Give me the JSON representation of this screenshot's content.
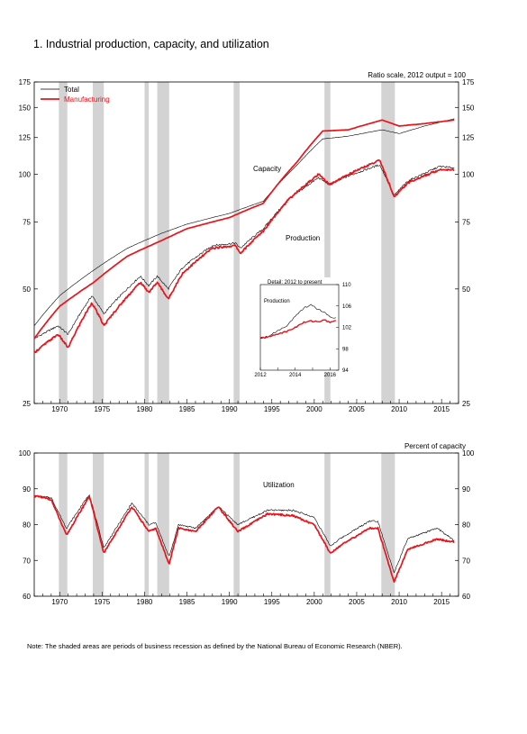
{
  "title": "1.  Industrial production, capacity, and utilization",
  "note": "Note: The shaded areas are periods of business recession as defined by the National Bureau of Economic Research (NBER).",
  "colors": {
    "total": "#000000",
    "manufacturing": "#e8141b",
    "recession": "#d3d3d3"
  },
  "chart_data": [
    {
      "type": "line",
      "scale": "log",
      "subtitle": "Ratio scale, 2012 output = 100",
      "x_range": [
        1967,
        2017
      ],
      "x_ticks": [
        "1970",
        "1975",
        "1980",
        "1985",
        "1990",
        "1995",
        "2000",
        "2005",
        "2010",
        "2015"
      ],
      "ylim": [
        25,
        175
      ],
      "y_ticks": [
        25,
        50,
        75,
        100,
        125,
        150,
        175
      ],
      "legend": {
        "placement": "top-left",
        "entries": [
          "Total",
          "Manufacturing"
        ]
      },
      "annotations": {
        "capacity": "Capacity",
        "production": "Production"
      },
      "recessions": [
        [
          1969.9,
          1970.9
        ],
        [
          1973.9,
          1975.2
        ],
        [
          1980.0,
          1980.5
        ],
        [
          1981.5,
          1982.9
        ],
        [
          1990.5,
          1991.2
        ],
        [
          2001.2,
          2001.9
        ],
        [
          2007.9,
          2009.5
        ]
      ],
      "series": [
        {
          "name": "Total",
          "group": "capacity",
          "x": [
            1967,
            1970,
            1974,
            1978,
            1982,
            1985,
            1990,
            1994,
            1998,
            2001,
            2004,
            2008,
            2010,
            2013,
            2016.5
          ],
          "values": [
            40,
            48,
            56,
            64,
            70,
            74,
            79,
            85,
            106,
            124,
            126,
            131,
            128,
            134,
            140
          ]
        },
        {
          "name": "Manufacturing",
          "group": "capacity",
          "x": [
            1967,
            1970,
            1974,
            1978,
            1982,
            1985,
            1990,
            1994,
            1998,
            2001,
            2004,
            2008,
            2010,
            2013,
            2016.5
          ],
          "values": [
            37,
            45,
            52,
            61,
            67,
            72,
            77,
            84,
            108,
            130,
            131,
            139,
            134,
            136,
            139
          ]
        },
        {
          "name": "Total",
          "group": "production",
          "x": [
            1967,
            1969.8,
            1971,
            1973.8,
            1975.2,
            1979.5,
            1980.5,
            1981.5,
            1982.8,
            1984.5,
            1988,
            1990.7,
            1991.3,
            1994,
            1997,
            2000.5,
            2001.8,
            2004,
            2007.7,
            2009.4,
            2011,
            2014.8,
            2016.5
          ],
          "values": [
            37,
            40,
            38,
            48,
            43,
            54,
            51,
            54,
            50,
            57,
            65,
            66,
            64,
            72,
            86,
            98,
            94,
            99,
            106,
            88,
            96,
            105,
            104
          ]
        },
        {
          "name": "Manufacturing",
          "group": "production",
          "x": [
            1967,
            1969.8,
            1971,
            1973.8,
            1975.2,
            1979.5,
            1980.5,
            1981.5,
            1982.8,
            1984.5,
            1988,
            1990.7,
            1991.3,
            1994,
            1997,
            2000.5,
            2001.8,
            2004,
            2007.7,
            2009.4,
            2011,
            2014.8,
            2016.5
          ],
          "values": [
            34,
            38,
            35,
            46,
            40,
            52,
            49,
            52,
            47,
            55,
            64,
            65,
            62,
            71,
            86,
            100,
            94,
            100,
            109,
            87,
            95,
            103,
            103
          ]
        }
      ],
      "inset": {
        "title": "Detail: 2012 to present",
        "label": "Production",
        "x_ticks": [
          "2012",
          "2014",
          "2016"
        ],
        "x_range": [
          2012,
          2016.5
        ],
        "ylim": [
          94,
          110
        ],
        "y_ticks": [
          94,
          98,
          102,
          106,
          110
        ],
        "series": [
          {
            "name": "Total",
            "x": [
              2012,
              2012.5,
              2013,
              2013.5,
              2014,
              2014.5,
              2014.9,
              2015.3,
              2015.7,
              2016,
              2016.4
            ],
            "values": [
              100,
              100.4,
              101.4,
              102.3,
              104,
              105.6,
              106.3,
              105.4,
              104.8,
              104,
              103.7
            ]
          },
          {
            "name": "Manufacturing",
            "x": [
              2012,
              2012.5,
              2013,
              2013.5,
              2014,
              2014.5,
              2014.9,
              2015.3,
              2015.7,
              2016,
              2016.4
            ],
            "values": [
              100,
              100.2,
              100.8,
              101.2,
              102,
              102.9,
              103.2,
              103.1,
              103.3,
              103,
              103.2
            ]
          }
        ]
      }
    },
    {
      "type": "line",
      "subtitle": "Percent of capacity",
      "x_range": [
        1967,
        2017
      ],
      "x_ticks": [
        "1970",
        "1975",
        "1980",
        "1985",
        "1990",
        "1995",
        "2000",
        "2005",
        "2010",
        "2015"
      ],
      "ylim": [
        60,
        100
      ],
      "y_ticks": [
        60,
        70,
        80,
        90,
        100
      ],
      "annotations": {
        "utilization": "Utilization"
      },
      "recessions": [
        [
          1969.9,
          1970.9
        ],
        [
          1973.9,
          1975.2
        ],
        [
          1980.0,
          1980.5
        ],
        [
          1981.5,
          1982.9
        ],
        [
          1990.5,
          1991.2
        ],
        [
          2001.2,
          2001.9
        ],
        [
          2007.9,
          2009.5
        ]
      ],
      "series": [
        {
          "name": "Total",
          "x": [
            1967,
            1969,
            1970.8,
            1973.5,
            1975.2,
            1978.5,
            1980.5,
            1981.3,
            1982.9,
            1984,
            1986,
            1988.7,
            1991,
            1994.5,
            1997.5,
            2000,
            2001.9,
            2003,
            2006.5,
            2007.5,
            2009.4,
            2011,
            2014.5,
            2016.5
          ],
          "values": [
            88,
            87.5,
            79,
            88.5,
            73.5,
            86,
            80,
            80.5,
            71,
            80,
            79,
            85,
            80,
            84,
            84,
            82,
            74,
            76,
            81,
            81,
            66.5,
            76,
            79,
            75.5
          ]
        },
        {
          "name": "Manufacturing",
          "x": [
            1967,
            1969,
            1970.8,
            1973.5,
            1975.2,
            1978.5,
            1980.5,
            1981.3,
            1982.9,
            1984,
            1986,
            1988.7,
            1991,
            1994.5,
            1997.5,
            2000,
            2001.9,
            2003,
            2006.5,
            2007.5,
            2009.4,
            2011,
            2014.5,
            2016.5
          ],
          "values": [
            88,
            87,
            77,
            88,
            72,
            85,
            78,
            79,
            69,
            79,
            78,
            85,
            78,
            83,
            82.5,
            80,
            72,
            74,
            79,
            79,
            64,
            73,
            76,
            75
          ]
        }
      ]
    }
  ]
}
